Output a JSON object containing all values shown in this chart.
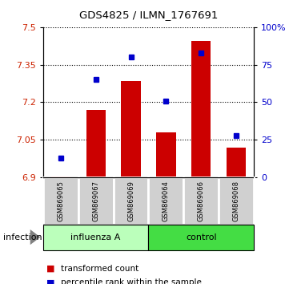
{
  "title": "GDS4825 / ILMN_1767691",
  "samples": [
    "GSM869065",
    "GSM869067",
    "GSM869069",
    "GSM869064",
    "GSM869066",
    "GSM869068"
  ],
  "red_values": [
    6.905,
    7.17,
    7.285,
    7.08,
    7.445,
    7.02
  ],
  "blue_percentiles": [
    13,
    65,
    80,
    51,
    83,
    28
  ],
  "ylim_left": [
    6.9,
    7.5
  ],
  "ylim_right": [
    0,
    100
  ],
  "yticks_left": [
    6.9,
    7.05,
    7.2,
    7.35,
    7.5
  ],
  "yticks_right": [
    0,
    25,
    50,
    75,
    100
  ],
  "ytick_labels_left": [
    "6.9",
    "7.05",
    "7.2",
    "7.35",
    "7.5"
  ],
  "ytick_labels_right": [
    "0",
    "25",
    "50",
    "75",
    "100%"
  ],
  "group_label": "infection",
  "influenza_color": "#ccffcc",
  "control_color": "#44cc44",
  "bar_color": "#cc0000",
  "dot_color": "#0000cc",
  "bar_bottom": 6.9,
  "background_color": "#ffffff",
  "tick_label_area_color": "#cccccc",
  "legend_red_label": "transformed count",
  "legend_blue_label": "percentile rank within the sample"
}
